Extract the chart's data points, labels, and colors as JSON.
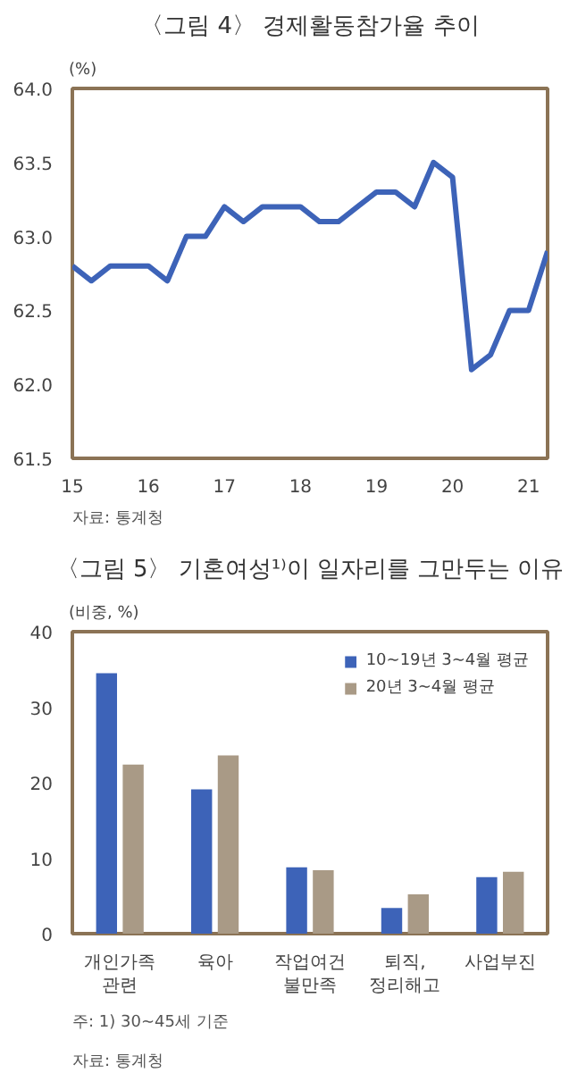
{
  "chart_data": [
    {
      "type": "line",
      "title": "〈그림 4〉 경제활동참가율 추이",
      "ylabel": "(%)",
      "x": [
        15,
        15.25,
        15.5,
        15.75,
        16,
        16.25,
        16.5,
        16.75,
        17,
        17.25,
        17.5,
        17.75,
        18,
        18.25,
        18.5,
        18.75,
        19,
        19.25,
        19.5,
        19.75,
        20,
        20.25,
        20.5,
        20.75,
        21,
        21.25
      ],
      "series": [
        {
          "color": "#3d63b8",
          "values": [
            62.8,
            62.7,
            62.8,
            62.8,
            62.8,
            62.7,
            63.0,
            63.0,
            63.2,
            63.1,
            63.2,
            63.2,
            63.2,
            63.1,
            63.1,
            63.2,
            63.3,
            63.3,
            63.2,
            63.5,
            63.4,
            62.1,
            62.2,
            62.5,
            62.5,
            62.9
          ]
        }
      ],
      "xlim": [
        15,
        21.25
      ],
      "xticks": [
        15,
        16,
        17,
        18,
        19,
        20,
        21
      ],
      "ylim": [
        61.5,
        64
      ],
      "yticks": [
        {
          "value": 61.5,
          "label": "61.5"
        },
        {
          "value": 62,
          "label": "62.0"
        },
        {
          "value": 62.5,
          "label": "62.5"
        },
        {
          "value": 63,
          "label": "63.0"
        },
        {
          "value": 63.5,
          "label": "63.5"
        },
        {
          "value": 64,
          "label": "64.0"
        }
      ],
      "grid": false,
      "line_style": "solid",
      "marker": "none",
      "annotations": [
        "자료: 통계청"
      ]
    },
    {
      "type": "bar",
      "title": "〈그림 5〉 기혼여성¹⁾이 일자리를 그만두는 이유",
      "ylabel": "(비중, %)",
      "categories": [
        "개인가족\n관련",
        "육아",
        "작업여건\n불만족",
        "퇴직,\n정리해고",
        "사업부진"
      ],
      "series": [
        {
          "name": "10~19년 3~4월 평균",
          "color": "#3d63b8",
          "values": [
            34.5,
            19.1,
            8.8,
            3.4,
            7.5
          ]
        },
        {
          "name": "20년 3~4월 평균",
          "color": "#a99a86",
          "values": [
            22.4,
            23.6,
            8.4,
            5.2,
            8.2
          ]
        }
      ],
      "ylim": [
        0,
        40
      ],
      "yticks": [
        0,
        10,
        20,
        30,
        40
      ],
      "grid": false,
      "legend": "top right",
      "annotations": [
        "주: 1) 30~45세 기준",
        "자료: 통계청"
      ]
    }
  ]
}
